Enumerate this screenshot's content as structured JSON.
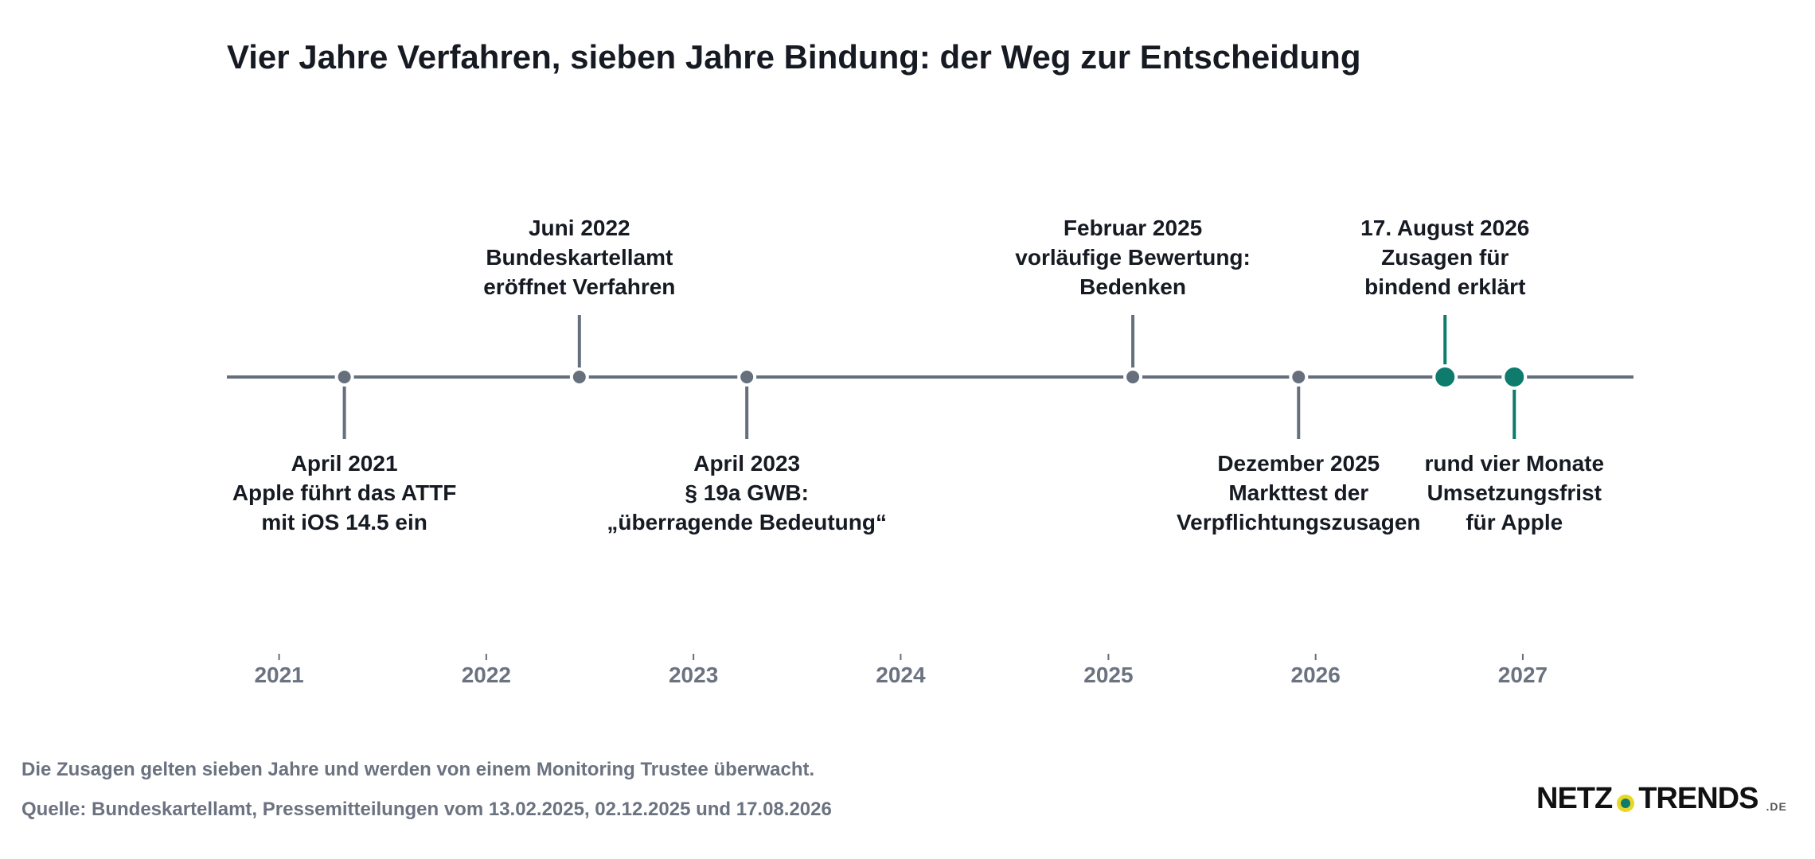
{
  "title": "Vier Jahre Verfahren, sieben Jahre Bindung: der Weg zur Entscheidung",
  "colors": {
    "neutral": "#666f7c",
    "highlight": "#0f7b6c",
    "text": "#161a22",
    "axis_label": "#6b7280"
  },
  "chart_data": {
    "type": "timeline",
    "title": "Vier Jahre Verfahren, sieben Jahre Bindung: der Weg zur Entscheidung",
    "xlim": [
      "2020-10-01",
      "2027-07-15"
    ],
    "ticks": [
      "2021",
      "2022",
      "2023",
      "2024",
      "2025",
      "2026",
      "2027"
    ],
    "events": [
      {
        "date": "2021-04-26",
        "side": "below",
        "highlight": false,
        "lines": [
          "April 2021",
          "Apple führt das ATTF",
          "mit iOS 14.5 ein"
        ]
      },
      {
        "date": "2022-06-14",
        "side": "above",
        "highlight": false,
        "lines": [
          "Juni 2022",
          "Bundeskartellamt",
          "eröffnet Verfahren"
        ]
      },
      {
        "date": "2023-04-05",
        "side": "below",
        "highlight": false,
        "lines": [
          "April 2023",
          "§ 19a GWB:",
          "„überragende Bedeutung“"
        ]
      },
      {
        "date": "2025-02-13",
        "side": "above",
        "highlight": false,
        "lines": [
          "Februar 2025",
          "vorläufige Bewertung:",
          "Bedenken"
        ]
      },
      {
        "date": "2025-12-02",
        "side": "below",
        "highlight": false,
        "lines": [
          "Dezember 2025",
          "Markttest der",
          "Verpflichtungszusagen"
        ]
      },
      {
        "date": "2026-08-17",
        "side": "above",
        "highlight": true,
        "lines": [
          "17. August 2026",
          "Zusagen für",
          "bindend erklärt"
        ]
      },
      {
        "date": "2026-12-17",
        "side": "below",
        "highlight": true,
        "lines": [
          "rund vier Monate",
          "Umsetzungsfrist",
          "für Apple"
        ]
      }
    ]
  },
  "footnote": "Die Zusagen gelten sieben Jahre und werden von einem Monitoring Trustee überwacht.",
  "source": "Quelle: Bundeskartellamt, Pressemitteilungen vom 13.02.2025, 02.12.2025 und 17.08.2026",
  "brand": {
    "part1": "NETZ",
    "part2": "TRENDS",
    "tld": ".DE"
  }
}
